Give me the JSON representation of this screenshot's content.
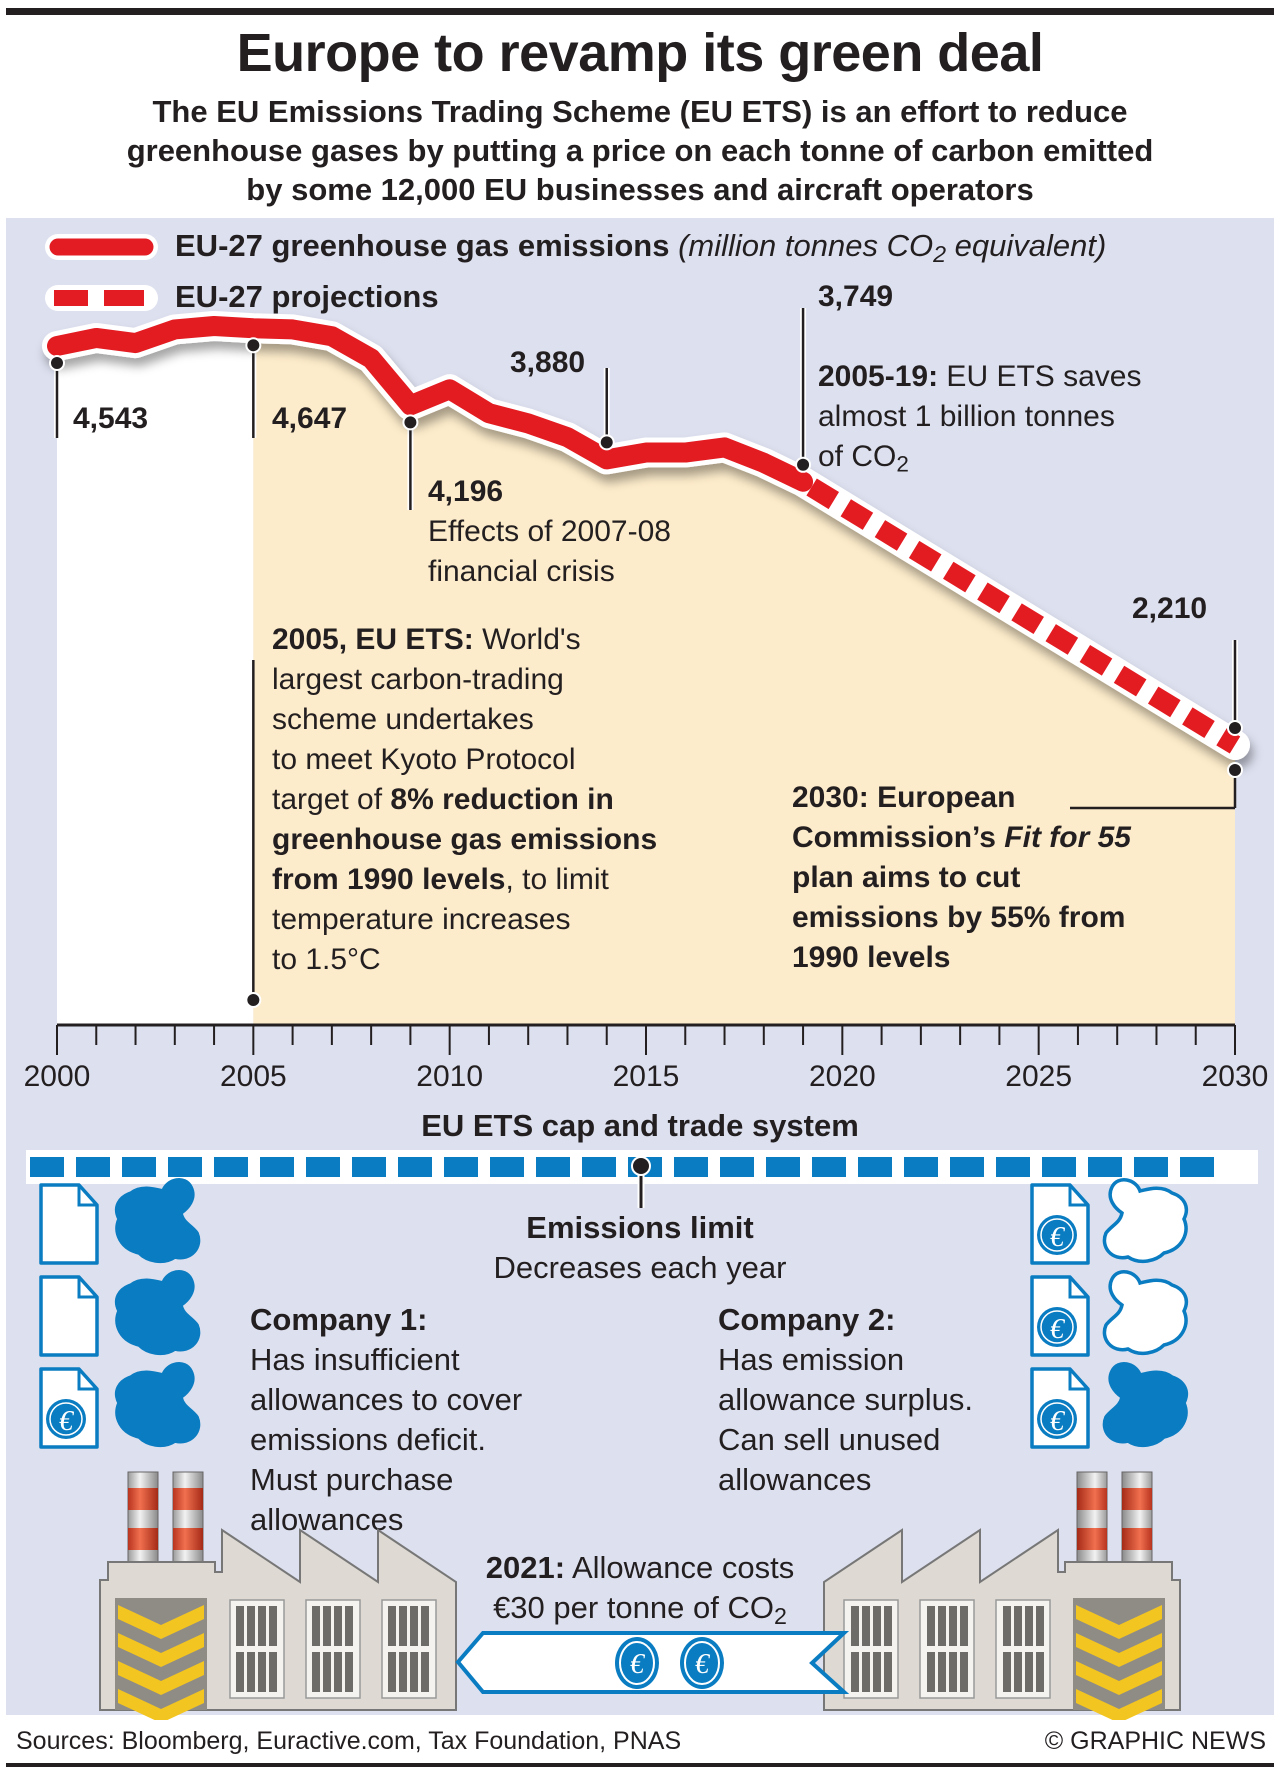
{
  "header": {
    "title": "Europe to revamp its green deal",
    "subtitle_lines": [
      "The EU Emissions Trading Scheme (EU ETS) is an effort to reduce",
      "greenhouse gases by putting a price on each tonne of carbon emitted",
      "by some 12,000 EU businesses and aircraft operators"
    ]
  },
  "chart_data": {
    "type": "line",
    "title": "EU-27 greenhouse gas emissions",
    "ylabel": "million tonnes CO2 equivalent",
    "xlabel": "",
    "xlim": [
      2000,
      2030
    ],
    "ylim": [
      2000,
      4900
    ],
    "grid": false,
    "legend_position": "top-left",
    "x_ticks": [
      "2000",
      "2005",
      "2010",
      "2015",
      "2020",
      "2025",
      "2030"
    ],
    "series": [
      {
        "name": "EU-27 greenhouse gas emissions",
        "style": "solid",
        "color": "#e31b23",
        "x": [
          2000,
          2001,
          2002,
          2003,
          2004,
          2005,
          2006,
          2007,
          2008,
          2009,
          2010,
          2011,
          2012,
          2013,
          2014,
          2015,
          2016,
          2017,
          2018,
          2019
        ],
        "values": [
          4543,
          4590,
          4560,
          4640,
          4660,
          4647,
          4640,
          4600,
          4470,
          4196,
          4290,
          4150,
          4090,
          4010,
          3880,
          3920,
          3920,
          3950,
          3860,
          3749
        ]
      },
      {
        "name": "EU-27 projections",
        "style": "dashed",
        "color": "#e31b23",
        "x": [
          2019,
          2030
        ],
        "values": [
          3749,
          2210
        ]
      }
    ],
    "legend": [
      {
        "label": "EU-27 greenhouse gas emissions",
        "unit_note": "(million tonnes CO",
        "unit_sub": "2",
        "unit_tail": " equivalent)"
      },
      {
        "label": "EU-27 projections"
      }
    ],
    "labeled_points": [
      {
        "year": 2000,
        "value": "4,543"
      },
      {
        "year": 2005,
        "value": "4,647"
      },
      {
        "year": 2009,
        "value": "4,196"
      },
      {
        "year": 2014,
        "value": "3,880"
      },
      {
        "year": 2019,
        "value": "3,749"
      },
      {
        "year": 2030,
        "value": "2,210"
      }
    ],
    "shading": {
      "ets_period_start": 2005,
      "color": "#fdeccb",
      "pre_ets_color": "#ffffff"
    }
  },
  "annotations": {
    "crisis_note_lines": [
      "Effects of 2007-08",
      "financial crisis"
    ],
    "ets_saves": {
      "bold": "2005-19:",
      "lines": [
        " EU ETS saves",
        "almost 1 billion tonnes",
        "of CO"
      ],
      "sub": "2"
    },
    "ets_2005": {
      "bold_lead": "2005, EU ETS:",
      "lead_rest": " World's",
      "lines": [
        "largest carbon-trading",
        "scheme undertakes",
        "to meet Kyoto Protocol"
      ],
      "target_pre": "target of ",
      "bold_1": "8% reduction in",
      "bold_2": "greenhouse gas emissions",
      "bold_3": "from 1990 levels",
      "tail_3": ", to limit",
      "lines_end": [
        "temperature increases",
        "to 1.5°C"
      ]
    },
    "fit55": {
      "line1": "2030: European",
      "line2_pre": "Commission’s ",
      "line2_italic": "Fit for 55",
      "lines": [
        "plan aims to cut",
        "emissions by 55% from",
        "1990 levels"
      ]
    }
  },
  "cap_trade": {
    "heading": "EU ETS cap and trade system",
    "limit_title": "Emissions limit",
    "limit_sub": "Decreases each year",
    "company1": {
      "title": "Company 1:",
      "lines": [
        "Has insufficient",
        "allowances to cover",
        "emissions deficit.",
        "Must purchase",
        "allowances"
      ]
    },
    "company2": {
      "title": "Company 2:",
      "lines": [
        "Has emission",
        "allowance surplus.",
        "Can sell unused",
        "allowances"
      ]
    },
    "price_bold": "2021:",
    "price_rest": " Allowance costs",
    "price_line2": "€30 per tonne of CO",
    "price_sub": "2",
    "euro_symbol": "€",
    "blue": "#0a7cc1"
  },
  "footer": {
    "sources": "Sources: Bloomberg, Euractive.com, Tax Foundation, PNAS",
    "credit": "© GRAPHIC NEWS"
  }
}
